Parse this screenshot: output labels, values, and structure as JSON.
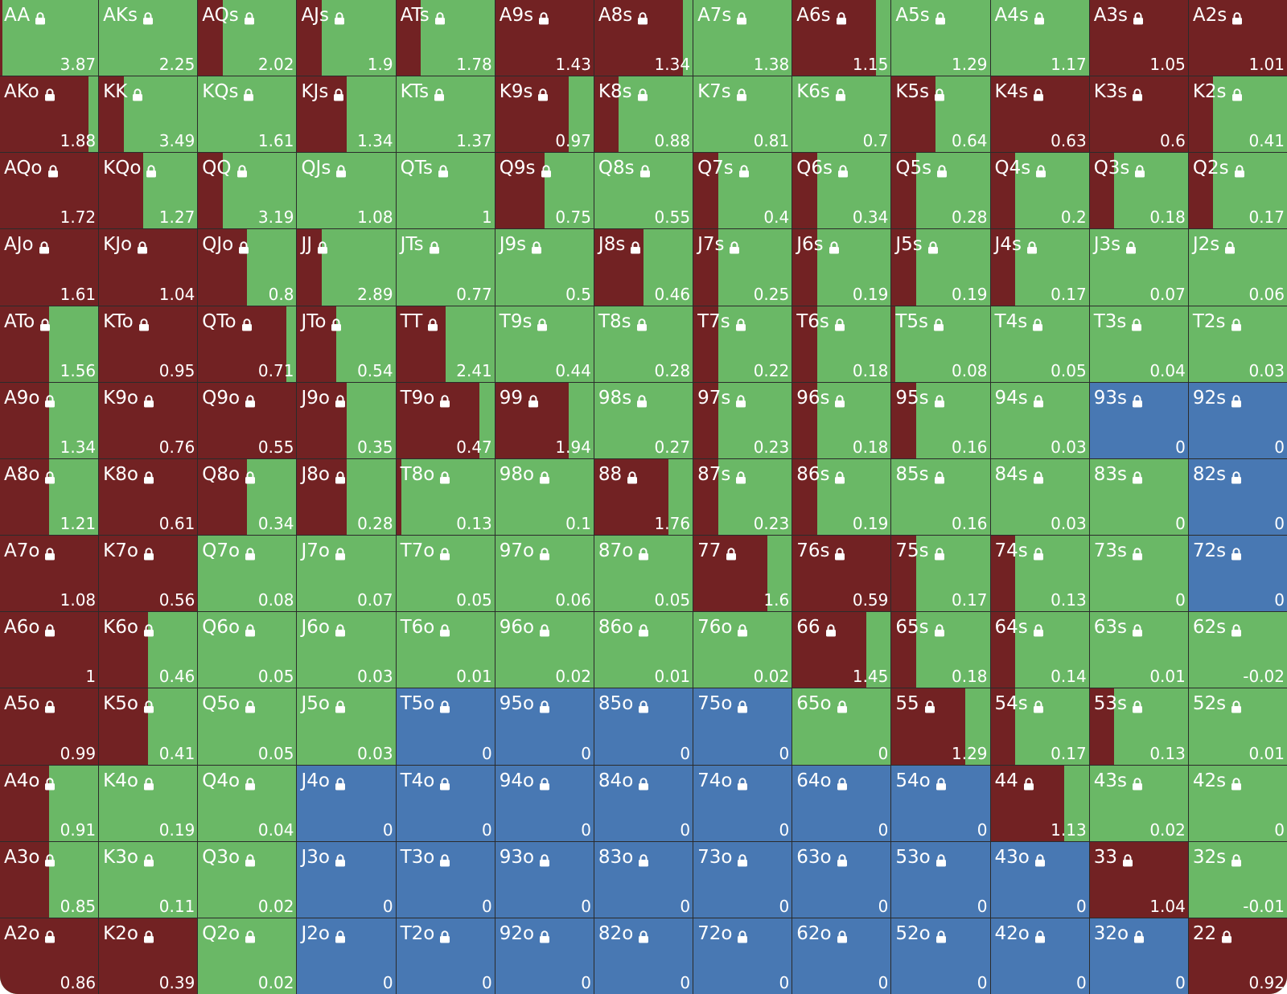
{
  "colors": {
    "raise": "#722223",
    "call": "#6ab866",
    "fold": "#4878b3",
    "text": "#ffffff"
  },
  "grid": {
    "rows": [
      [
        [
          "AA",
          0.025,
          "3.87"
        ],
        [
          "AKs",
          0,
          "2.25"
        ],
        [
          "AQs",
          0.25,
          "2.02"
        ],
        [
          "AJs",
          0.25,
          "1.9"
        ],
        [
          "ATs",
          0.25,
          "1.78"
        ],
        [
          "A9s",
          1,
          "1.43"
        ],
        [
          "A8s",
          0.9,
          "1.34"
        ],
        [
          "A7s",
          0,
          "1.38"
        ],
        [
          "A6s",
          0.85,
          "1.15"
        ],
        [
          "A5s",
          0,
          "1.29"
        ],
        [
          "A4s",
          0,
          "1.17"
        ],
        [
          "A3s",
          1,
          "1.05"
        ],
        [
          "A2s",
          1,
          "1.01"
        ]
      ],
      [
        [
          "AKo",
          0.9,
          "1.88"
        ],
        [
          "KK",
          0.25,
          "3.49"
        ],
        [
          "KQs",
          0,
          "1.61"
        ],
        [
          "KJs",
          0.5,
          "1.34"
        ],
        [
          "KTs",
          0,
          "1.37"
        ],
        [
          "K9s",
          0.75,
          "0.97"
        ],
        [
          "K8s",
          0.25,
          "0.88"
        ],
        [
          "K7s",
          0,
          "0.81"
        ],
        [
          "K6s",
          0,
          "0.7"
        ],
        [
          "K5s",
          0.45,
          "0.64"
        ],
        [
          "K4s",
          1,
          "0.63"
        ],
        [
          "K3s",
          1,
          "0.6"
        ],
        [
          "K2s",
          0.25,
          "0.41"
        ]
      ],
      [
        [
          "AQo",
          1,
          "1.72"
        ],
        [
          "KQo",
          0.45,
          "1.27"
        ],
        [
          "QQ",
          0.25,
          "3.19"
        ],
        [
          "QJs",
          0,
          "1.08"
        ],
        [
          "QTs",
          0,
          "1"
        ],
        [
          "Q9s",
          0.5,
          "0.75"
        ],
        [
          "Q8s",
          0,
          "0.55"
        ],
        [
          "Q7s",
          0.25,
          "0.4"
        ],
        [
          "Q6s",
          0.25,
          "0.34"
        ],
        [
          "Q5s",
          0.25,
          "0.28"
        ],
        [
          "Q4s",
          0.25,
          "0.2"
        ],
        [
          "Q3s",
          0.25,
          "0.18"
        ],
        [
          "Q2s",
          0.25,
          "0.17"
        ]
      ],
      [
        [
          "AJo",
          1,
          "1.61"
        ],
        [
          "KJo",
          1,
          "1.04"
        ],
        [
          "QJo",
          0.5,
          "0.8"
        ],
        [
          "JJ",
          0.25,
          "2.89"
        ],
        [
          "JTs",
          0,
          "0.77"
        ],
        [
          "J9s",
          0,
          "0.5"
        ],
        [
          "J8s",
          0.5,
          "0.46"
        ],
        [
          "J7s",
          0.25,
          "0.25"
        ],
        [
          "J6s",
          0.25,
          "0.19"
        ],
        [
          "J5s",
          0.25,
          "0.19"
        ],
        [
          "J4s",
          0.25,
          "0.17"
        ],
        [
          "J3s",
          0,
          "0.07"
        ],
        [
          "J2s",
          0,
          "0.06"
        ]
      ],
      [
        [
          "ATo",
          0.5,
          "1.56"
        ],
        [
          "KTo",
          1,
          "0.95"
        ],
        [
          "QTo",
          0.9,
          "0.71"
        ],
        [
          "JTo",
          0.4,
          "0.54"
        ],
        [
          "TT",
          0.5,
          "2.41"
        ],
        [
          "T9s",
          0,
          "0.44"
        ],
        [
          "T8s",
          0,
          "0.28"
        ],
        [
          "T7s",
          0.25,
          "0.22"
        ],
        [
          "T6s",
          0.25,
          "0.18"
        ],
        [
          "T5s",
          0.04,
          "0.08"
        ],
        [
          "T4s",
          0,
          "0.05"
        ],
        [
          "T3s",
          0,
          "0.04"
        ],
        [
          "T2s",
          0,
          "0.03"
        ]
      ],
      [
        [
          "A9o",
          0.5,
          "1.34"
        ],
        [
          "K9o",
          1,
          "0.76"
        ],
        [
          "Q9o",
          1,
          "0.55"
        ],
        [
          "J9o",
          0.5,
          "0.35"
        ],
        [
          "T9o",
          0.85,
          "0.47"
        ],
        [
          "99",
          0.75,
          "1.94"
        ],
        [
          "98s",
          0,
          "0.27"
        ],
        [
          "97s",
          0.25,
          "0.23"
        ],
        [
          "96s",
          0.25,
          "0.18"
        ],
        [
          "95s",
          0.25,
          "0.16"
        ],
        [
          "94s",
          0,
          "0.03"
        ],
        [
          "93s",
          null,
          "0"
        ],
        [
          "92s",
          null,
          "0"
        ]
      ],
      [
        [
          "A8o",
          0.5,
          "1.21"
        ],
        [
          "K8o",
          1,
          "0.61"
        ],
        [
          "Q8o",
          0.5,
          "0.34"
        ],
        [
          "J8o",
          0.5,
          "0.28"
        ],
        [
          "T8o",
          0.05,
          "0.13"
        ],
        [
          "98o",
          0,
          "0.1"
        ],
        [
          "88",
          0.75,
          "1.76"
        ],
        [
          "87s",
          0.25,
          "0.23"
        ],
        [
          "86s",
          0.25,
          "0.19"
        ],
        [
          "85s",
          0,
          "0.16"
        ],
        [
          "84s",
          0,
          "0.03"
        ],
        [
          "83s",
          0,
          "0"
        ],
        [
          "82s",
          null,
          "0"
        ]
      ],
      [
        [
          "A7o",
          1,
          "1.08"
        ],
        [
          "K7o",
          1,
          "0.56"
        ],
        [
          "Q7o",
          0,
          "0.08"
        ],
        [
          "J7o",
          0,
          "0.07"
        ],
        [
          "T7o",
          0,
          "0.05"
        ],
        [
          "97o",
          0,
          "0.06"
        ],
        [
          "87o",
          0,
          "0.05"
        ],
        [
          "77",
          0.75,
          "1.6"
        ],
        [
          "76s",
          1,
          "0.59"
        ],
        [
          "75s",
          0.25,
          "0.17"
        ],
        [
          "74s",
          0.25,
          "0.13"
        ],
        [
          "73s",
          0,
          "0"
        ],
        [
          "72s",
          null,
          "0"
        ]
      ],
      [
        [
          "A6o",
          1,
          "1"
        ],
        [
          "K6o",
          0.5,
          "0.46"
        ],
        [
          "Q6o",
          0,
          "0.05"
        ],
        [
          "J6o",
          0,
          "0.03"
        ],
        [
          "T6o",
          0,
          "0.01"
        ],
        [
          "96o",
          0,
          "0.02"
        ],
        [
          "86o",
          0,
          "0.01"
        ],
        [
          "76o",
          0,
          "0.02"
        ],
        [
          "66",
          0.75,
          "1.45"
        ],
        [
          "65s",
          0.25,
          "0.18"
        ],
        [
          "64s",
          0.25,
          "0.14"
        ],
        [
          "63s",
          0,
          "0.01"
        ],
        [
          "62s",
          0,
          "-0.02"
        ]
      ],
      [
        [
          "A5o",
          1,
          "0.99"
        ],
        [
          "K5o",
          0.5,
          "0.41"
        ],
        [
          "Q5o",
          0,
          "0.05"
        ],
        [
          "J5o",
          0,
          "0.03"
        ],
        [
          "T5o",
          null,
          "0"
        ],
        [
          "95o",
          null,
          "0"
        ],
        [
          "85o",
          null,
          "0"
        ],
        [
          "75o",
          null,
          "0"
        ],
        [
          "65o",
          0,
          "0"
        ],
        [
          "55",
          0.75,
          "1.29"
        ],
        [
          "54s",
          0.25,
          "0.17"
        ],
        [
          "53s",
          0.25,
          "0.13"
        ],
        [
          "52s",
          0,
          "0.01"
        ]
      ],
      [
        [
          "A4o",
          0.5,
          "0.91"
        ],
        [
          "K4o",
          0,
          "0.19"
        ],
        [
          "Q4o",
          0,
          "0.04"
        ],
        [
          "J4o",
          null,
          "0"
        ],
        [
          "T4o",
          null,
          "0"
        ],
        [
          "94o",
          null,
          "0"
        ],
        [
          "84o",
          null,
          "0"
        ],
        [
          "74o",
          null,
          "0"
        ],
        [
          "64o",
          null,
          "0"
        ],
        [
          "54o",
          null,
          "0"
        ],
        [
          "44",
          0.75,
          "1.13"
        ],
        [
          "43s",
          0,
          "0.02"
        ],
        [
          "42s",
          0,
          "0"
        ]
      ],
      [
        [
          "A3o",
          0.5,
          "0.85"
        ],
        [
          "K3o",
          0,
          "0.11"
        ],
        [
          "Q3o",
          0,
          "0.02"
        ],
        [
          "J3o",
          null,
          "0"
        ],
        [
          "T3o",
          null,
          "0"
        ],
        [
          "93o",
          null,
          "0"
        ],
        [
          "83o",
          null,
          "0"
        ],
        [
          "73o",
          null,
          "0"
        ],
        [
          "63o",
          null,
          "0"
        ],
        [
          "53o",
          null,
          "0"
        ],
        [
          "43o",
          null,
          "0"
        ],
        [
          "33",
          1,
          "1.04"
        ],
        [
          "32s",
          0,
          "-0.01"
        ]
      ],
      [
        [
          "A2o",
          1,
          "0.86"
        ],
        [
          "K2o",
          1,
          "0.39"
        ],
        [
          "Q2o",
          0,
          "0.02"
        ],
        [
          "J2o",
          null,
          "0"
        ],
        [
          "T2o",
          null,
          "0"
        ],
        [
          "92o",
          null,
          "0"
        ],
        [
          "82o",
          null,
          "0"
        ],
        [
          "72o",
          null,
          "0"
        ],
        [
          "62o",
          null,
          "0"
        ],
        [
          "52o",
          null,
          "0"
        ],
        [
          "42o",
          null,
          "0"
        ],
        [
          "32o",
          null,
          "0"
        ],
        [
          "22",
          1,
          "0.92"
        ]
      ]
    ]
  }
}
